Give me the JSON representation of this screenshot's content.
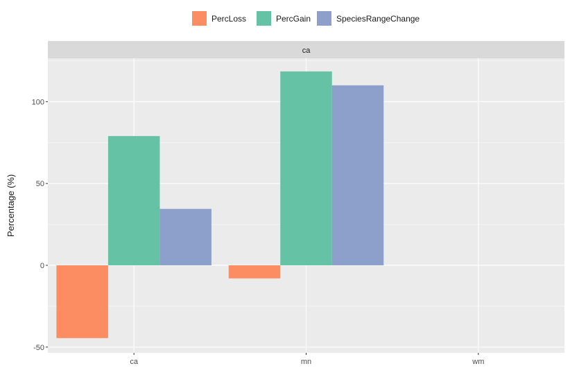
{
  "chart_data": {
    "type": "bar",
    "facet_label": "ca",
    "categories": [
      "ca",
      "mn",
      "wm"
    ],
    "series": [
      {
        "name": "PercLoss",
        "color": "#FC8D62",
        "values": [
          -44.5,
          -8,
          null
        ]
      },
      {
        "name": "PercGain",
        "color": "#66C2A5",
        "values": [
          79,
          118.5,
          null
        ]
      },
      {
        "name": "SpeciesRangeChange",
        "color": "#8DA0CB",
        "values": [
          34.5,
          110,
          null
        ]
      }
    ],
    "ylabel": "Percentage (%)",
    "xlabel": "",
    "ylim": [
      -53.5,
      126.5
    ],
    "yticks": [
      -50,
      0,
      50,
      100
    ],
    "ytick_labels": [
      "-50",
      "0",
      "50",
      "100"
    ],
    "grid": true,
    "legend_position": "top",
    "colors": {
      "panel_background": "#EBEBEB",
      "strip_background": "#D9D9D9",
      "grid_major": "#FFFFFF"
    }
  }
}
